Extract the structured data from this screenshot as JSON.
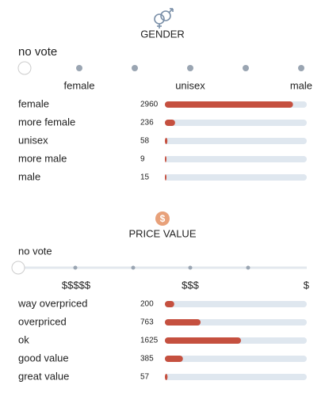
{
  "gender": {
    "title": "GENDER",
    "no_vote": "no vote",
    "scale_labels": [
      "female",
      "unisex",
      "male"
    ],
    "rows": [
      {
        "label": "female",
        "votes": 2960
      },
      {
        "label": "more female",
        "votes": 236
      },
      {
        "label": "unisex",
        "votes": 58
      },
      {
        "label": "more male",
        "votes": 9
      },
      {
        "label": "male",
        "votes": 15
      }
    ]
  },
  "price": {
    "title": "PRICE VALUE",
    "no_vote": "no vote",
    "scale_labels": [
      "$$$$$",
      "$$$",
      "$"
    ],
    "rows": [
      {
        "label": "way overpriced",
        "votes": 200
      },
      {
        "label": "overpriced",
        "votes": 763
      },
      {
        "label": "ok",
        "votes": 1625
      },
      {
        "label": "good value",
        "votes": 385
      },
      {
        "label": "great value",
        "votes": 57
      }
    ]
  }
}
